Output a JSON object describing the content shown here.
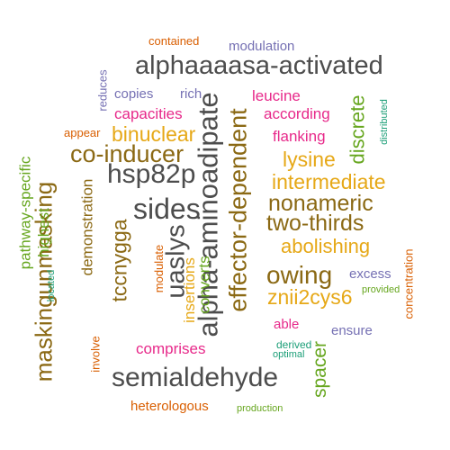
{
  "colors": {
    "gray": "#4d4d4d",
    "brown": "#8b6914",
    "gold": "#e6a817",
    "magenta": "#e7298a",
    "green": "#66a61e",
    "purple": "#7570b3",
    "orange": "#d95f02",
    "teal": "#1b9e77"
  },
  "words": [
    {
      "id": "alphaaaasa-activated",
      "text": "alphaaaasa-activated",
      "color": "gray",
      "vertical": false
    },
    {
      "id": "alpha-aminoadipate",
      "text": "alpha-aminoadipate",
      "color": "gray",
      "vertical": true
    },
    {
      "id": "semialdehyde",
      "text": "semialdehyde",
      "color": "gray",
      "vertical": false
    },
    {
      "id": "effector-dependent",
      "text": "effector-dependent",
      "color": "brown",
      "vertical": true
    },
    {
      "id": "maskingunmasking",
      "text": "maskingunmasking",
      "color": "brown",
      "vertical": true
    },
    {
      "id": "sides",
      "text": "sides",
      "color": "gray",
      "vertical": false
    },
    {
      "id": "hsp82p",
      "text": "hsp82p",
      "color": "gray",
      "vertical": false
    },
    {
      "id": "co-inducer",
      "text": "co-inducer",
      "color": "brown",
      "vertical": false
    },
    {
      "id": "uaslys",
      "text": "uaslys",
      "color": "gray",
      "vertical": true
    },
    {
      "id": "two-thirds",
      "text": "two-thirds",
      "color": "brown",
      "vertical": false
    },
    {
      "id": "nonameric",
      "text": "nonameric",
      "color": "brown",
      "vertical": false
    },
    {
      "id": "tccnygga",
      "text": "tccnygga",
      "color": "brown",
      "vertical": true
    },
    {
      "id": "intermediate",
      "text": "intermediate",
      "color": "gold",
      "vertical": false
    },
    {
      "id": "binuclear",
      "text": "binuclear",
      "color": "gold",
      "vertical": false
    },
    {
      "id": "owing",
      "text": "owing",
      "color": "brown",
      "vertical": false
    },
    {
      "id": "abolishing",
      "text": "abolishing",
      "color": "gold",
      "vertical": false
    },
    {
      "id": "znii2cys6",
      "text": "znii2cys6",
      "color": "gold",
      "vertical": false
    },
    {
      "id": "lysine",
      "text": "lysine",
      "color": "gold",
      "vertical": false
    },
    {
      "id": "discrete",
      "text": "discrete",
      "color": "green",
      "vertical": true
    },
    {
      "id": "spacer",
      "text": "spacer",
      "color": "green",
      "vertical": true
    },
    {
      "id": "capacities",
      "text": "capacities",
      "color": "magenta",
      "vertical": false
    },
    {
      "id": "according",
      "text": "according",
      "color": "magenta",
      "vertical": false
    },
    {
      "id": "comprises",
      "text": "comprises",
      "color": "magenta",
      "vertical": false
    },
    {
      "id": "flanking",
      "text": "flanking",
      "color": "magenta",
      "vertical": false
    },
    {
      "id": "leucine",
      "text": "leucine",
      "color": "magenta",
      "vertical": false
    },
    {
      "id": "demonstration",
      "text": "demonstration",
      "color": "brown",
      "vertical": true
    },
    {
      "id": "insertions",
      "text": "insertions",
      "color": "gold",
      "vertical": true
    },
    {
      "id": "highest",
      "text": "highest",
      "color": "green",
      "vertical": true
    },
    {
      "id": "pathway-specific",
      "text": "pathway-specific",
      "color": "green",
      "vertical": true
    },
    {
      "id": "converts",
      "text": "converts",
      "color": "green",
      "vertical": true
    },
    {
      "id": "heterologous",
      "text": "heterologous",
      "color": "orange",
      "vertical": false
    },
    {
      "id": "modulation",
      "text": "modulation",
      "color": "purple",
      "vertical": false
    },
    {
      "id": "copies",
      "text": "copies",
      "color": "purple",
      "vertical": false
    },
    {
      "id": "rich",
      "text": "rich",
      "color": "purple",
      "vertical": false
    },
    {
      "id": "excess",
      "text": "excess",
      "color": "purple",
      "vertical": false
    },
    {
      "id": "ensure",
      "text": "ensure",
      "color": "purple",
      "vertical": false
    },
    {
      "id": "able",
      "text": "able",
      "color": "magenta",
      "vertical": false
    },
    {
      "id": "contained",
      "text": "contained",
      "color": "orange",
      "vertical": false
    },
    {
      "id": "appear",
      "text": "appear",
      "color": "orange",
      "vertical": false
    },
    {
      "id": "reduces",
      "text": "reduces",
      "color": "purple",
      "vertical": true
    },
    {
      "id": "concentration",
      "text": "concentration",
      "color": "orange",
      "vertical": true
    },
    {
      "id": "involve",
      "text": "involve",
      "color": "orange",
      "vertical": true
    },
    {
      "id": "modulate",
      "text": "modulate",
      "color": "orange",
      "vertical": true
    },
    {
      "id": "located",
      "text": "located",
      "color": "teal",
      "vertical": true
    },
    {
      "id": "distributed",
      "text": "distributed",
      "color": "teal",
      "vertical": true
    },
    {
      "id": "provided",
      "text": "provided",
      "color": "green",
      "vertical": false
    },
    {
      "id": "derived",
      "text": "derived",
      "color": "teal",
      "vertical": false
    },
    {
      "id": "optimal",
      "text": "optimal",
      "color": "teal",
      "vertical": false
    },
    {
      "id": "production",
      "text": "production",
      "color": "green",
      "vertical": false
    }
  ]
}
